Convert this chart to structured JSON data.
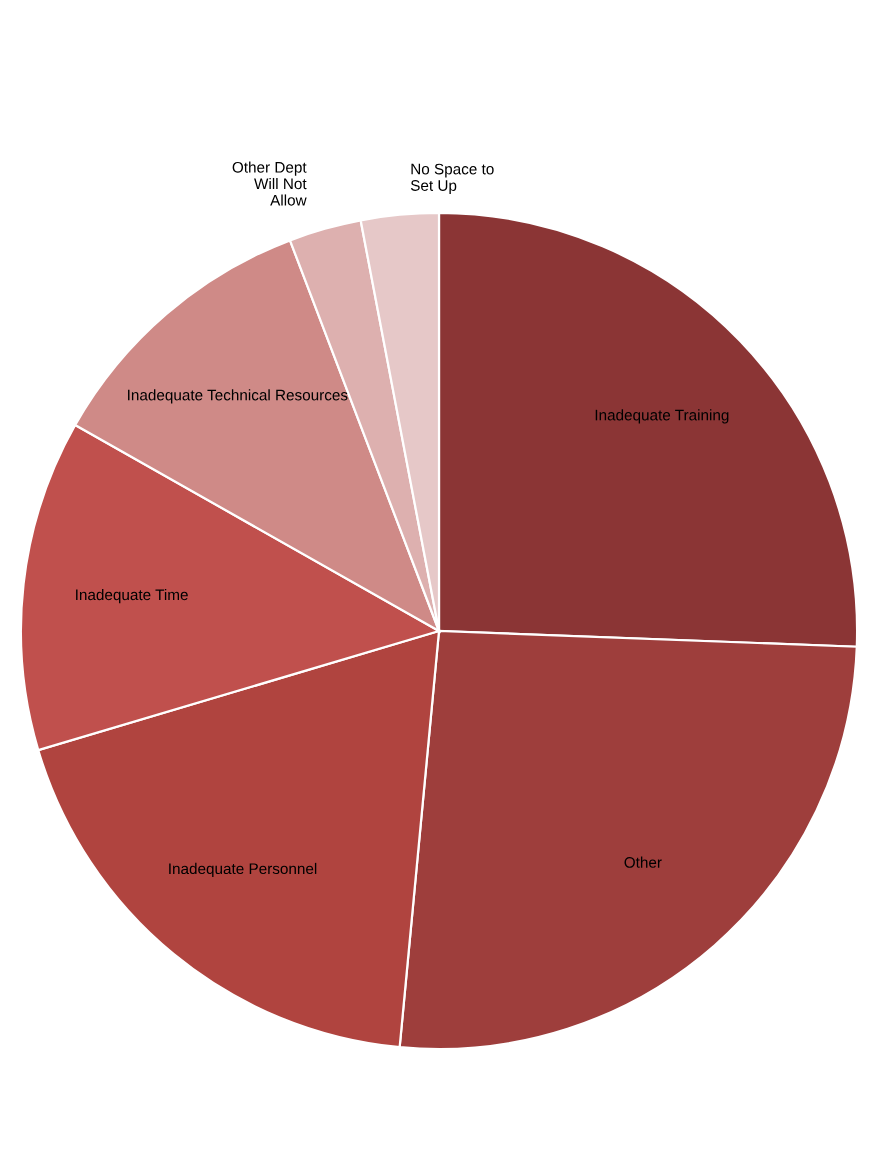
{
  "chart_data": {
    "type": "pie",
    "categories": [
      "Inadequate Training",
      "Other",
      "Inadequate Personnel",
      "Inadequate Time",
      "Inadequate Technical Resources",
      "Other Dept\nWill Not\nAllow",
      "No Space to\nSet Up"
    ],
    "values": [
      25.6,
      25.9,
      18.9,
      12.8,
      11.0,
      2.8,
      3.0
    ],
    "colors": [
      "#8b3535",
      "#9e3e3c",
      "#b0443f",
      "#c0504d",
      "#cf8a87",
      "#ddb0af",
      "#e6c8c8"
    ]
  }
}
